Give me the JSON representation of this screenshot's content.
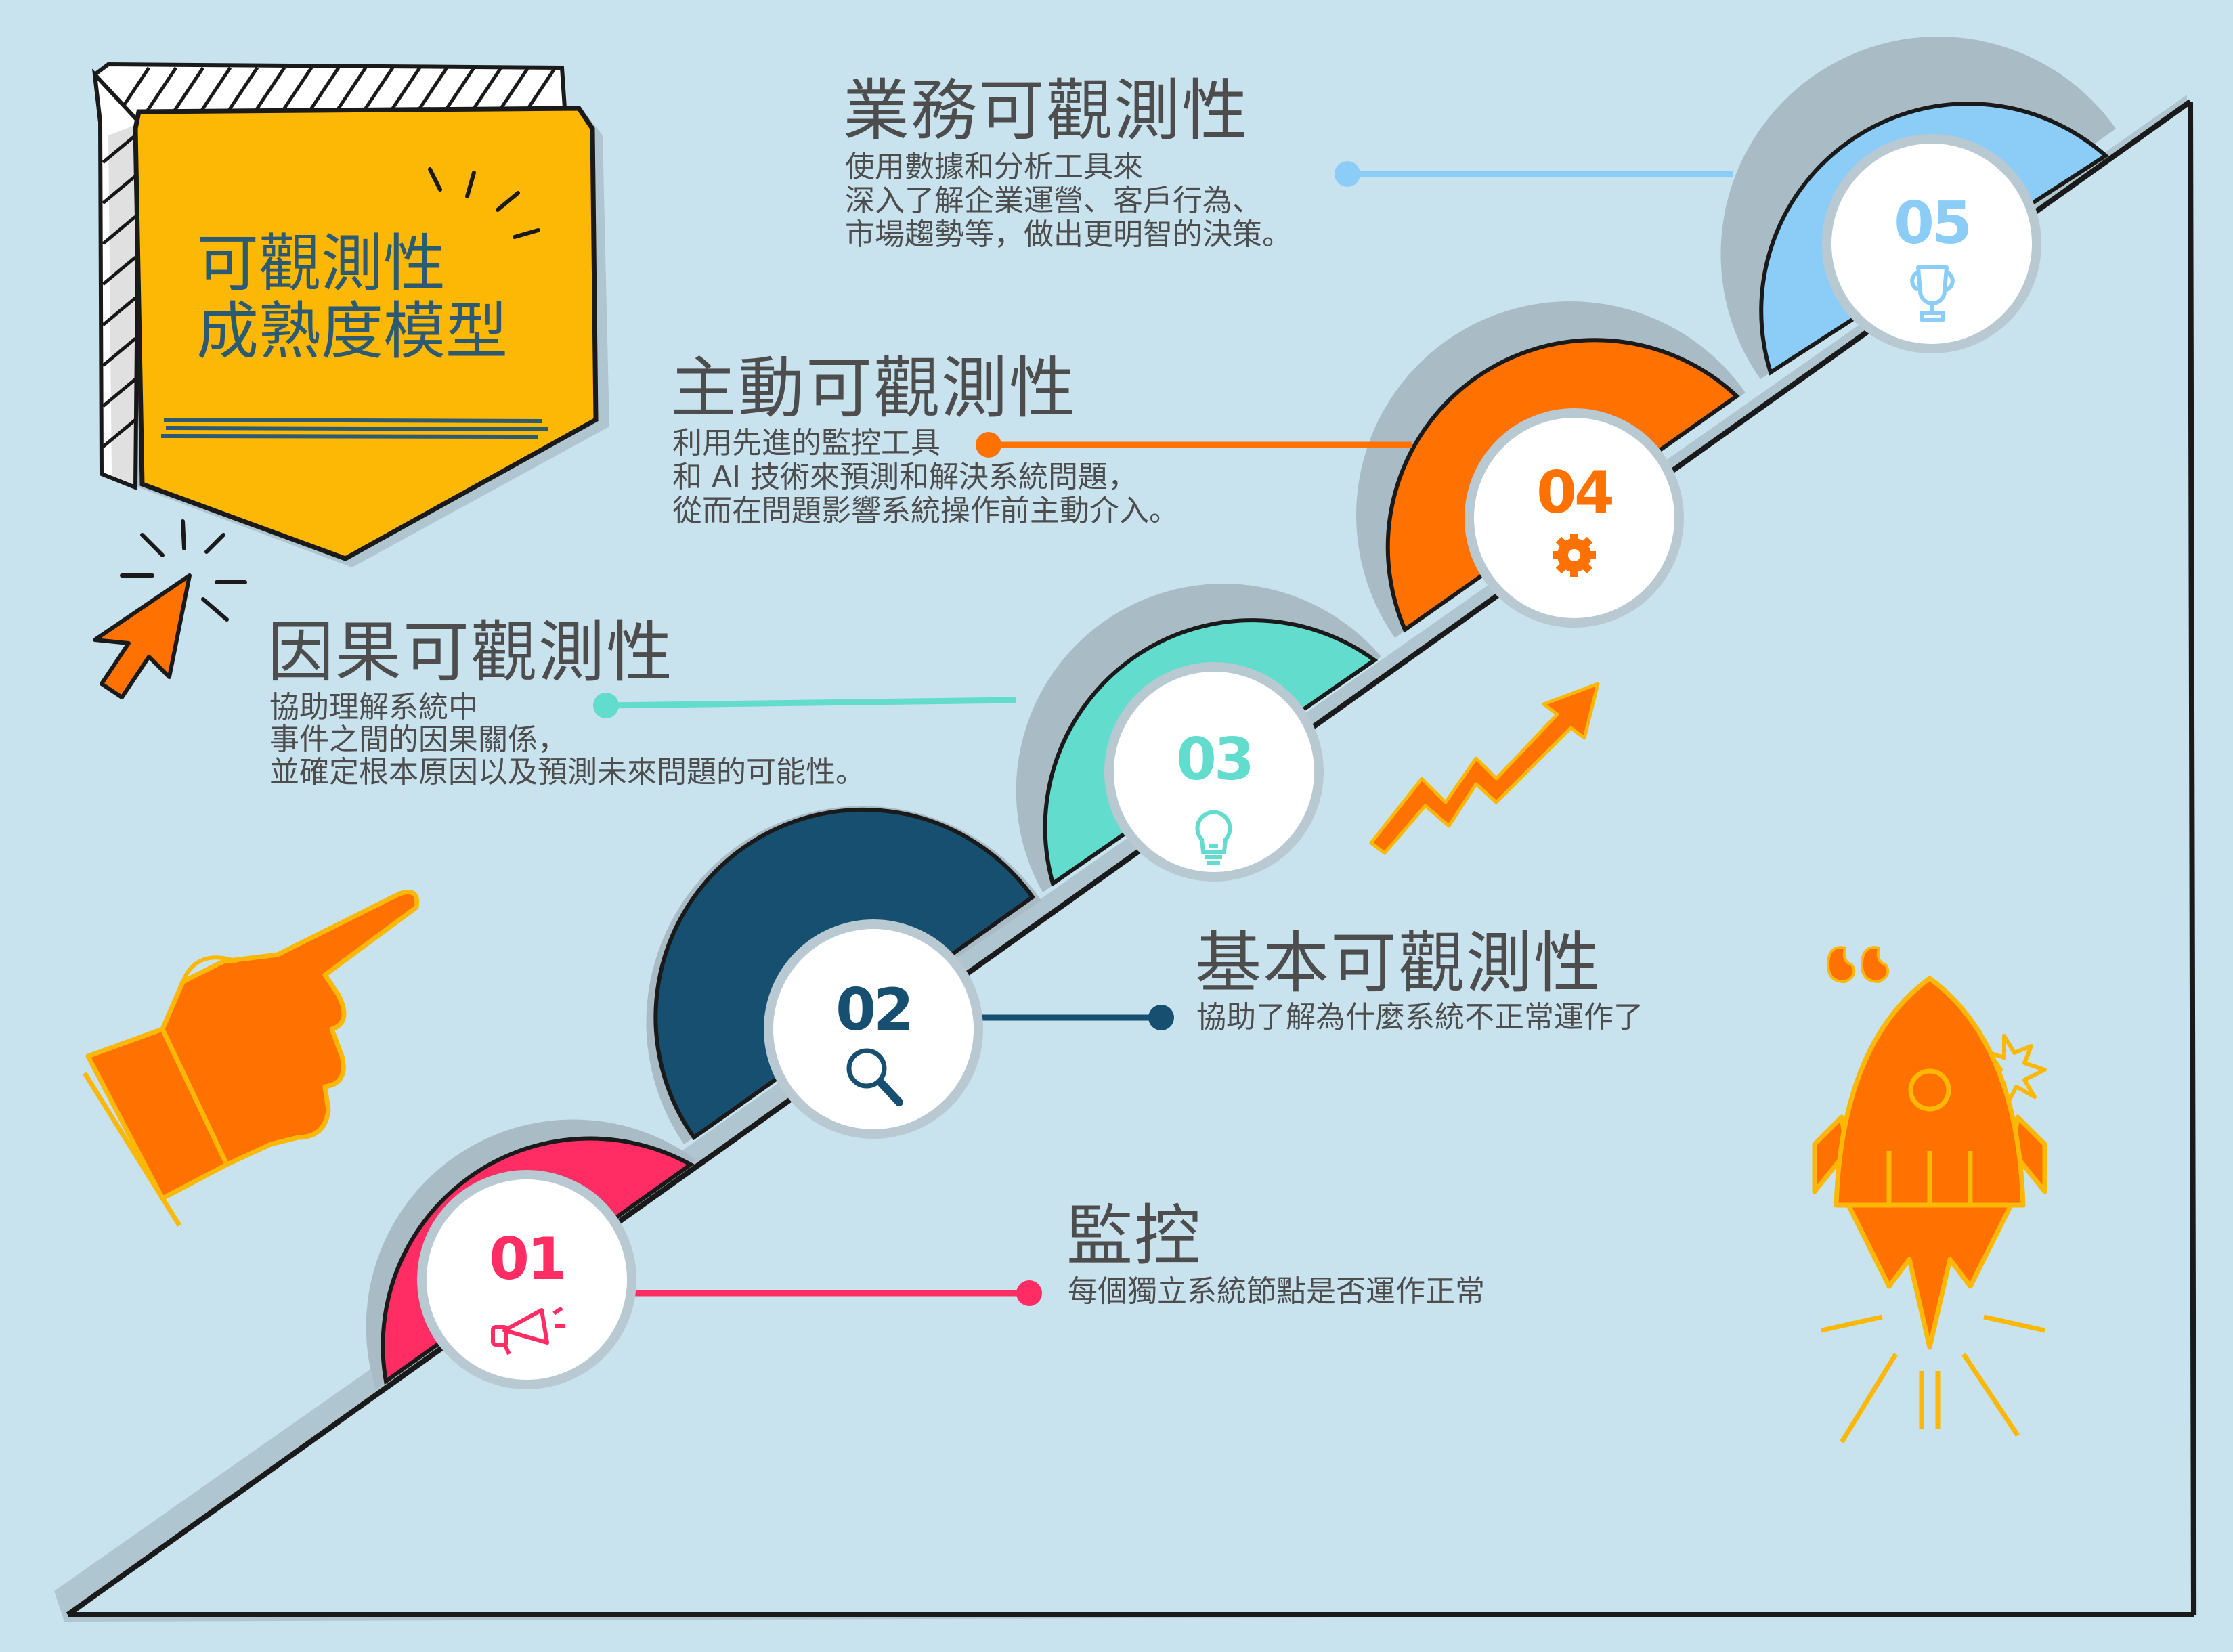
{
  "title": {
    "line1": "可觀測性",
    "line2": "成熟度模型"
  },
  "levels": [
    {
      "num": "01",
      "heading": "監控",
      "desc": [
        "每個獨立系統節點是否運作正常"
      ],
      "color": "#ff2d63",
      "icon": "megaphone-icon"
    },
    {
      "num": "02",
      "heading": "基本可觀測性",
      "desc": [
        "協助了解為什麼系統不正常運作了"
      ],
      "color": "#164f70",
      "icon": "magnifier-icon"
    },
    {
      "num": "03",
      "heading": "因果可觀測性",
      "desc": [
        "協助理解系統中",
        "事件之間的因果關係，",
        "並確定根本原因以及預測未來問題的可能性。"
      ],
      "color": "#62dccd",
      "icon": "lightbulb-icon"
    },
    {
      "num": "04",
      "heading": "主動可觀測性",
      "desc": [
        "利用先進的監控工具",
        "和 AI 技術來預測和解決系統問題，",
        "從而在問題影響系統操作前主動介入。"
      ],
      "color": "#ff7100",
      "icon": "gear-icon"
    },
    {
      "num": "05",
      "heading": "業務可觀測性",
      "desc": [
        "使用數據和分析工具來",
        "深入了解企業運營、客戶行為、",
        "市場趨勢等，做出更明智的決策。"
      ],
      "color": "#8ccdf8",
      "icon": "trophy-icon"
    }
  ],
  "colors": {
    "background": "#c8e2ee",
    "badge": "#fdb705",
    "accent_orange": "#ff7100",
    "text": "#4d4d4d",
    "title_text": "#2c5a72"
  }
}
